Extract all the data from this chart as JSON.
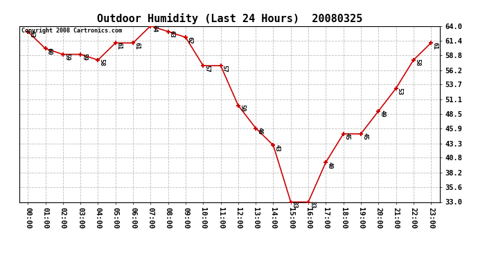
{
  "title": "Outdoor Humidity (Last 24 Hours)  20080325",
  "copyright": "Copyright 2008 Cartronics.com",
  "hours": [
    "00:00",
    "01:00",
    "02:00",
    "03:00",
    "04:00",
    "05:00",
    "06:00",
    "07:00",
    "08:00",
    "09:00",
    "10:00",
    "11:00",
    "12:00",
    "13:00",
    "14:00",
    "15:00",
    "16:00",
    "17:00",
    "18:00",
    "19:00",
    "20:00",
    "21:00",
    "22:00",
    "23:00"
  ],
  "values": [
    63,
    60,
    59,
    59,
    58,
    61,
    61,
    64,
    63,
    62,
    57,
    57,
    50,
    46,
    43,
    33,
    33,
    40,
    45,
    45,
    49,
    53,
    58,
    61
  ],
  "ylim": [
    33.0,
    64.0
  ],
  "yticks": [
    33.0,
    35.6,
    38.2,
    40.8,
    43.3,
    45.9,
    48.5,
    51.1,
    53.7,
    56.2,
    58.8,
    61.4,
    64.0
  ],
  "line_color": "#cc0000",
  "marker_color": "#cc0000",
  "bg_color": "#ffffff",
  "grid_color": "#bbbbbb",
  "title_fontsize": 11,
  "label_fontsize": 7.5,
  "annotation_fontsize": 6.5
}
